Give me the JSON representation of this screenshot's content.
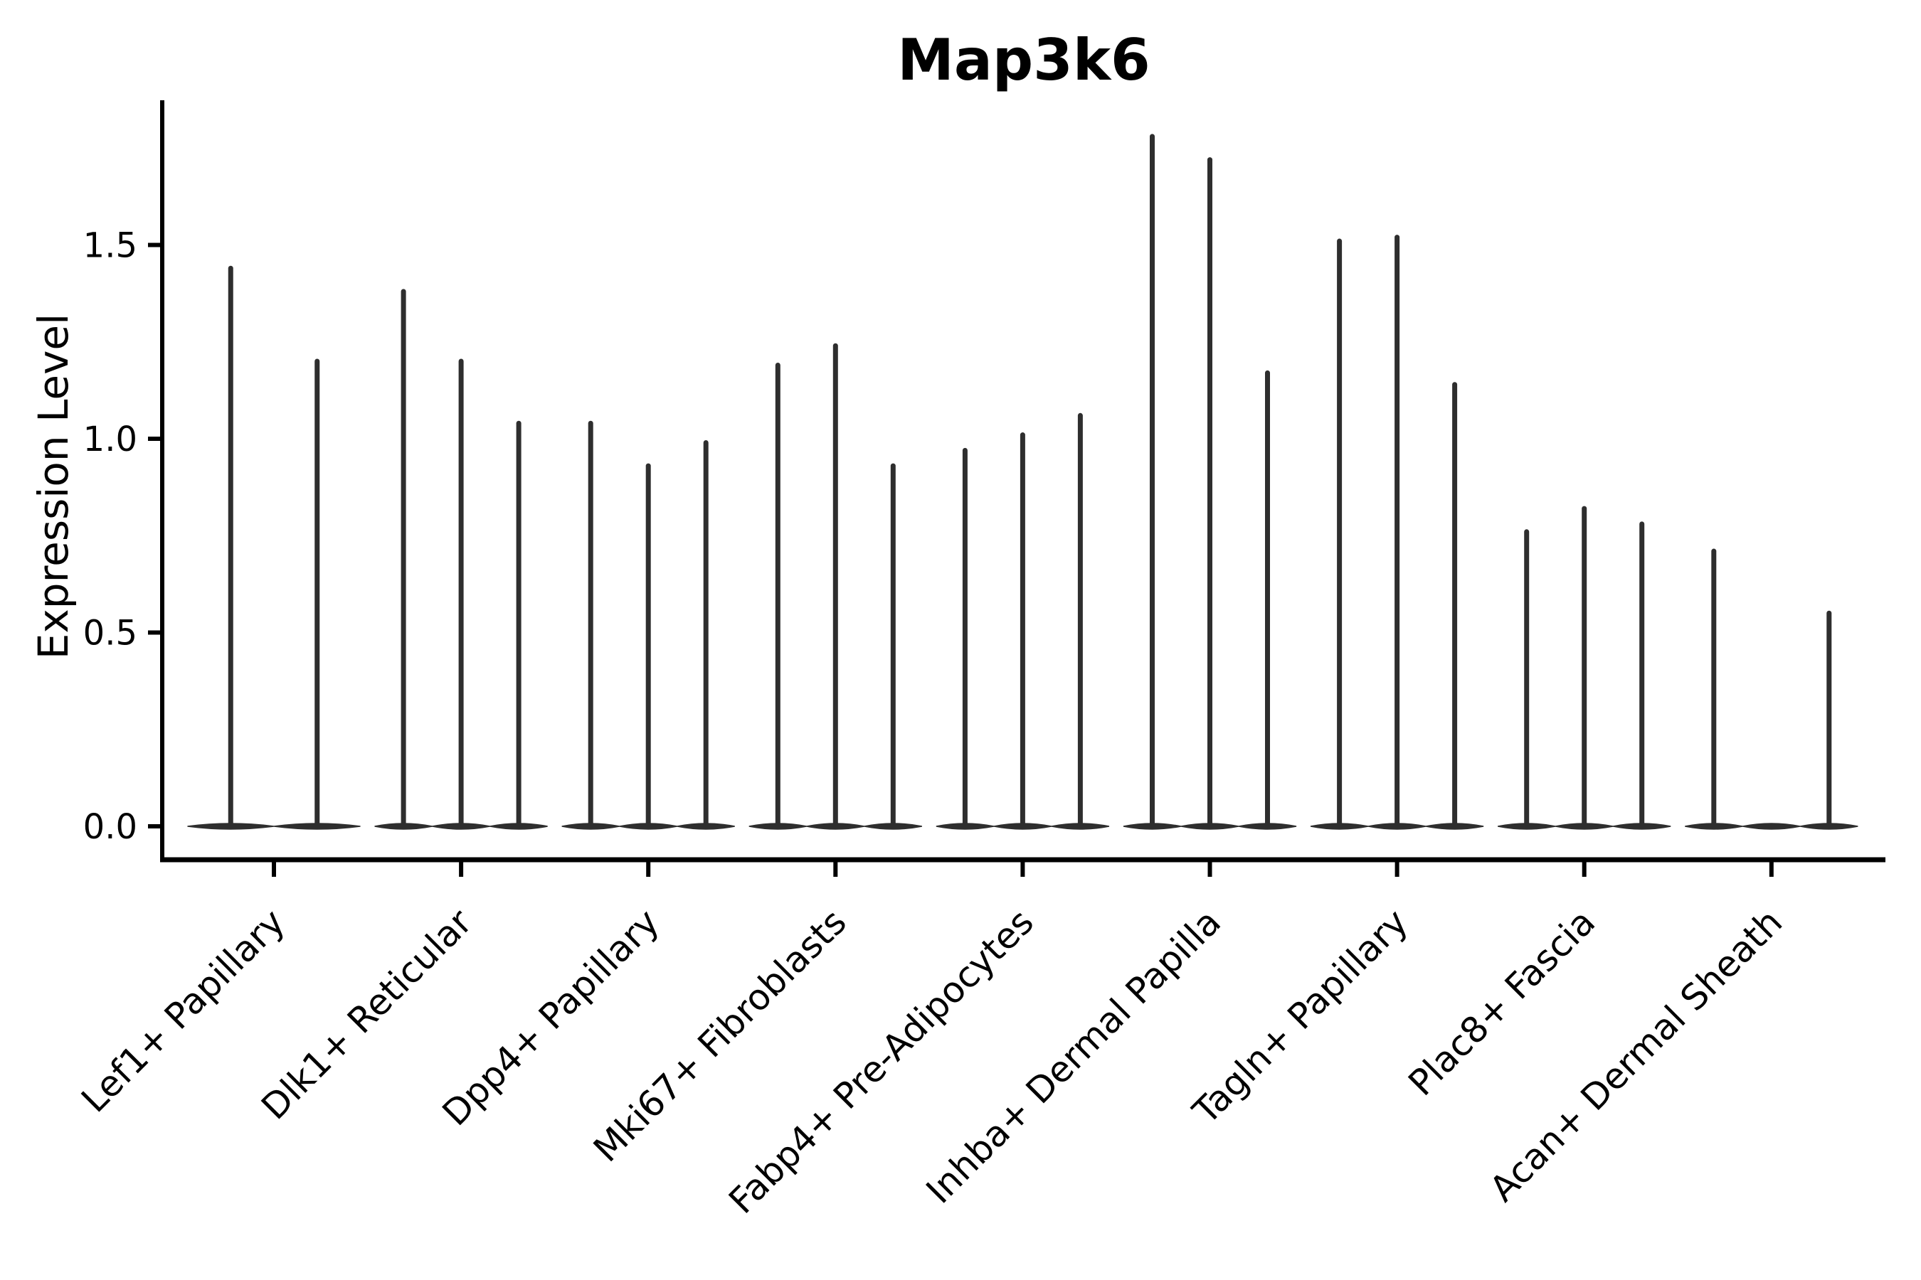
{
  "title": "Map3k6",
  "y_axis": {
    "label": "Expression Level",
    "tick_labels": [
      "0.0",
      "0.5",
      "1.0",
      "1.5"
    ]
  },
  "colors": {
    "violin": "#2e2e2e",
    "axis": "#000000",
    "text": "#000000",
    "background": "#ffffff"
  },
  "chart_data": {
    "type": "violin",
    "title": "Map3k6",
    "xlabel": "",
    "ylabel": "Expression Level",
    "ylim": [
      0,
      1.87
    ],
    "yticks": [
      0.0,
      0.5,
      1.0,
      1.5
    ],
    "grid": false,
    "legend": "none",
    "description": "Single-cell expression violin plot; each category holds adjacent thin violins whose density mass sits at 0 with a narrow spike up to the max expression value.",
    "categories": [
      {
        "label": "Lef1+ Papillary",
        "violin_maxima": [
          1.44,
          1.2
        ]
      },
      {
        "label": "Dlk1+ Reticular",
        "violin_maxima": [
          1.38,
          1.2,
          1.04
        ]
      },
      {
        "label": "Dpp4+ Papillary",
        "violin_maxima": [
          1.04,
          0.93,
          0.99
        ]
      },
      {
        "label": "Mki67+ Fibroblasts",
        "violin_maxima": [
          1.19,
          1.24,
          0.93
        ]
      },
      {
        "label": "Fabp4+ Pre-Adipocytes",
        "violin_maxima": [
          0.97,
          1.01,
          1.06
        ]
      },
      {
        "label": "Inhba+ Dermal Papilla",
        "violin_maxima": [
          1.78,
          1.72,
          1.17
        ]
      },
      {
        "label": "Tagln+ Papillary",
        "violin_maxima": [
          1.51,
          1.52,
          1.14
        ]
      },
      {
        "label": "Plac8+ Fascia",
        "violin_maxima": [
          0.76,
          0.82,
          0.78
        ]
      },
      {
        "label": "Acan+ Dermal Sheath",
        "violin_maxima": [
          0.71,
          0.0,
          0.55
        ]
      }
    ]
  }
}
